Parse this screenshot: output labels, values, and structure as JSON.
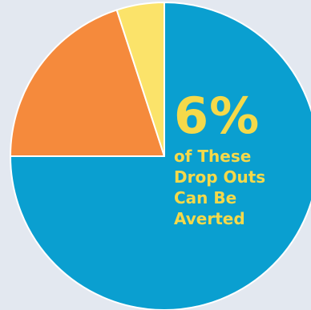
{
  "chart_data": {
    "type": "pie",
    "slices": [
      {
        "value": 75,
        "color": "#0a9fd0"
      },
      {
        "value": 20,
        "color": "#f58a3c"
      },
      {
        "value": 5,
        "color": "#fbe36a"
      }
    ],
    "start": "12 o'clock",
    "direction": "clockwise",
    "callout": {
      "big": "6%",
      "lines": [
        "of These",
        "Drop Outs",
        "Can Be",
        "Averted"
      ]
    }
  },
  "colors": {
    "background": "#e3e8f0",
    "callout_text": "#f5d94a",
    "slice_border": "#ffffff"
  }
}
